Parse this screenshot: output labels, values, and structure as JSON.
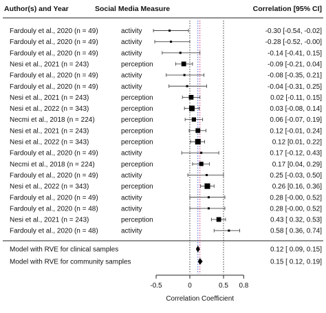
{
  "chart_data": {
    "type": "forest",
    "headers": {
      "study": "Author(s) and Year",
      "measure": "Social Media Measure",
      "ci": "Correlation [95% CI]"
    },
    "xlabel": "Correlation Coefficient",
    "xlim": [
      -0.5,
      0.8
    ],
    "xticks": [
      "-0.5",
      "0",
      "0.5",
      "0.8"
    ],
    "xtick_values": [
      -0.5,
      0,
      0.5,
      0.8
    ],
    "reference_lines": [
      {
        "x": 0,
        "style": "dotted",
        "color": "#333333"
      },
      {
        "x": 0.12,
        "style": "dotted",
        "color": "#3b4fd8"
      },
      {
        "x": 0.15,
        "style": "dotted",
        "color": "#d12f7a"
      },
      {
        "x": 0.5,
        "style": "dotted",
        "color": "#333333"
      }
    ],
    "studies": [
      {
        "study": "Fardouly et al., 2020 (n = 49)",
        "measure": "activity",
        "r": -0.3,
        "lo": -0.54,
        "hi": -0.02,
        "ci_text": "-0.30 [-0.54, -0.02]",
        "weight": 1
      },
      {
        "study": "Fardouly et al., 2020 (n = 49)",
        "measure": "activity",
        "r": -0.28,
        "lo": -0.52,
        "hi": -0.0,
        "ci_text": "-0.28 [-0.52, -0.00]",
        "weight": 1
      },
      {
        "study": "Fardouly et al., 2020 (n = 49)",
        "measure": "activity",
        "r": -0.14,
        "lo": -0.41,
        "hi": 0.15,
        "ci_text": "-0.14 [-0.41, 0.15]",
        "weight": 1
      },
      {
        "study": "Nesi et al., 2021 (n = 243)",
        "measure": "perception",
        "r": -0.09,
        "lo": -0.21,
        "hi": 0.04,
        "ci_text": "-0.09 [-0.21, 0.04]",
        "weight": 4
      },
      {
        "study": "Fardouly et al., 2020 (n = 49)",
        "measure": "activity",
        "r": -0.08,
        "lo": -0.35,
        "hi": 0.21,
        "ci_text": "-0.08 [-0.35, 0.21]",
        "weight": 1
      },
      {
        "study": "Fardouly et al., 2020 (n = 49)",
        "measure": "activity",
        "r": -0.04,
        "lo": -0.31,
        "hi": 0.25,
        "ci_text": "-0.04 [-0.31, 0.25]",
        "weight": 1
      },
      {
        "study": "Nesi et al., 2021 (n = 243)",
        "measure": "perception",
        "r": 0.02,
        "lo": -0.11,
        "hi": 0.15,
        "ci_text": "0.02 [-0.11, 0.15]",
        "weight": 4
      },
      {
        "study": "Nesi et al., 2022 (n = 343)",
        "measure": "perception",
        "r": 0.03,
        "lo": -0.08,
        "hi": 0.14,
        "ci_text": "0.03 [-0.08, 0.14]",
        "weight": 5
      },
      {
        "study": "Necmi et al., 2018 (n = 224)",
        "measure": "perception",
        "r": 0.06,
        "lo": -0.07,
        "hi": 0.19,
        "ci_text": "0.06 [-0.07, 0.19]",
        "weight": 3.5
      },
      {
        "study": "Nesi et al., 2021 (n = 243)",
        "measure": "perception",
        "r": 0.12,
        "lo": -0.01,
        "hi": 0.24,
        "ci_text": "0.12 [-0.01, 0.24]",
        "weight": 4
      },
      {
        "study": "Nesi et al., 2022 (n = 343)",
        "measure": "perception",
        "r": 0.12,
        "lo": 0.01,
        "hi": 0.22,
        "ci_text": "0.12 [0.01, 0.22]",
        "weight": 5
      },
      {
        "study": "Fardouly et al., 2020 (n = 49)",
        "measure": "activity",
        "r": 0.17,
        "lo": -0.12,
        "hi": 0.43,
        "ci_text": "0.17 [-0.12, 0.43]",
        "weight": 1
      },
      {
        "study": "Necmi et al., 2018 (n = 224)",
        "measure": "perception",
        "r": 0.17,
        "lo": 0.04,
        "hi": 0.29,
        "ci_text": "0.17 [0.04, 0.29]",
        "weight": 3.5
      },
      {
        "study": "Fardouly et al., 2020 (n = 49)",
        "measure": "activity",
        "r": 0.25,
        "lo": -0.03,
        "hi": 0.5,
        "ci_text": "0.25 [-0.03, 0.50]",
        "weight": 1
      },
      {
        "study": "Nesi et al., 2022 (n = 343)",
        "measure": "perception",
        "r": 0.26,
        "lo": 0.16,
        "hi": 0.36,
        "ci_text": "0.26 [0.16, 0.36]",
        "weight": 5
      },
      {
        "study": "Fardouly et al., 2020 (n = 49)",
        "measure": "activity",
        "r": 0.28,
        "lo": -0.0,
        "hi": 0.52,
        "ci_text": "0.28 [-0.00, 0.52]",
        "weight": 1
      },
      {
        "study": "Fardouly et al., 2020 (n = 48)",
        "measure": "activity",
        "r": 0.28,
        "lo": -0.0,
        "hi": 0.52,
        "ci_text": "0.28 [-0.00, 0.52]",
        "weight": 1
      },
      {
        "study": "Nesi et al., 2021 (n = 243)",
        "measure": "perception",
        "r": 0.43,
        "lo": 0.32,
        "hi": 0.53,
        "ci_text": "0.43 [ 0.32, 0.53]",
        "weight": 4
      },
      {
        "study": "Fardouly et al., 2020 (n = 48)",
        "measure": "activity",
        "r": 0.58,
        "lo": 0.36,
        "hi": 0.74,
        "ci_text": "0.58 [ 0.36, 0.74]",
        "weight": 1
      }
    ],
    "models": [
      {
        "label": "Model with RVE for clinical samples",
        "r": 0.12,
        "lo": 0.09,
        "hi": 0.15,
        "ci_text": "0.12 [ 0.09, 0.15]"
      },
      {
        "label": "Model with RVE for community samples",
        "r": 0.15,
        "lo": 0.12,
        "hi": 0.19,
        "ci_text": "0.15 [ 0.12, 0.19]"
      }
    ]
  }
}
